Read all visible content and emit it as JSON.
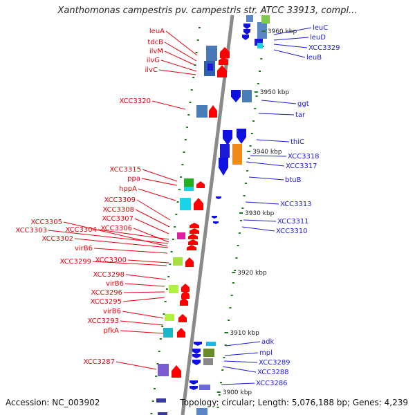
{
  "title": "Xanthomonas campestris pv. campestris str. ATCC 33913, compl...",
  "footer": {
    "accession": "Accession: NC_003902",
    "info": "Topology: circular; Length: 5,076,188 bp; Genes: 4,239"
  },
  "colors": {
    "backbone": "#8a8a8a",
    "forward_gene": "#ff0000",
    "reverse_gene": "#1010e0",
    "label_left": "#e8000b",
    "label_right": "#1a1ad8",
    "tick": "#1a7a1a"
  },
  "scale_labels": [
    "3960 kbp",
    "3950 kbp",
    "3940 kbp",
    "3930 kbp",
    "3920 kbp",
    "3910 kbp",
    "3900 kbp"
  ],
  "left_labels": [
    "leuA",
    "tdcB",
    "ilvM",
    "ilvG",
    "ilvC",
    "XCC3320",
    "XCC3315",
    "ppa",
    "hppA",
    "XCC3309",
    "XCC3308",
    "XCC3307",
    "XCC3306",
    "XCC3305",
    "XCC3304",
    "XCC3303",
    "XCC3302",
    "virB6",
    "XCC3300",
    "XCC3299",
    "XCC3298",
    "virB6",
    "XCC3296",
    "XCC3295",
    "virB6",
    "XCC3293",
    "pfkA",
    "XCC3287"
  ],
  "right_labels": [
    "leuC",
    "leuD",
    "XCC3329",
    "leuB",
    "ggt",
    "tar",
    "thiC",
    "XCC3318",
    "XCC3317",
    "btuB",
    "XCC3313",
    "XCC3311",
    "XCC3310",
    "adk",
    "mpl",
    "XCC3289",
    "XCC3288",
    "XCC3286"
  ]
}
